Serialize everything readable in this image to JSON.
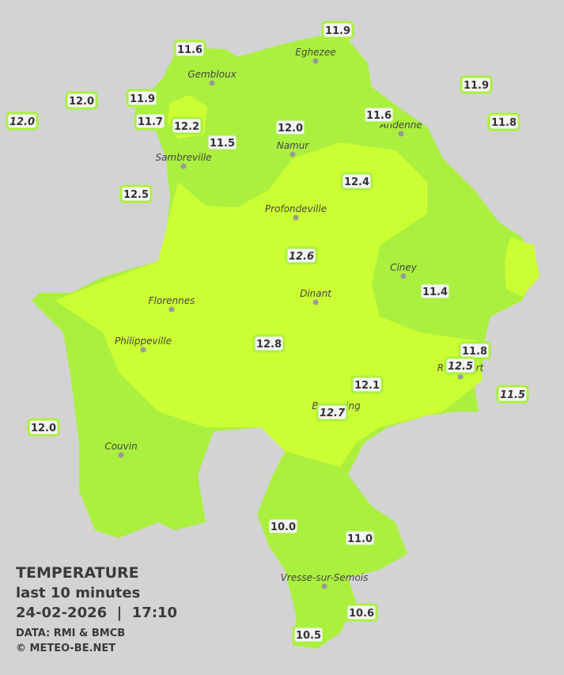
{
  "legend": {
    "title": "TEMPERATURE",
    "subtitle": "last 10 minutes",
    "timestamp": "24-02-2026  |  17:10",
    "source": "DATA: RMI & BMCB",
    "credit": "© METEO-BE.NET"
  },
  "cities": [
    "Eghezee",
    "Gembloux",
    "Andenne",
    "Sambreville",
    "Namur",
    "Profondeville",
    "Ciney",
    "Dinant",
    "Florennes",
    "Philippeville",
    "Rochefort",
    "Beauraing",
    "Couvin",
    "Vresse-sur-Semois"
  ],
  "stations": [
    "11.6",
    "11.9",
    "12.0",
    "11.9",
    "12.0",
    "11.7",
    "12.2",
    "11.5",
    "12.0",
    "11.6",
    "11.9",
    "11.8",
    "12.5",
    "12.4",
    "12.6",
    "11.4",
    "12.8",
    "11.8",
    "12.5",
    "12.1",
    "12.7",
    "11.5",
    "12.0",
    "10.0",
    "11.0",
    "10.6",
    "10.5"
  ]
}
